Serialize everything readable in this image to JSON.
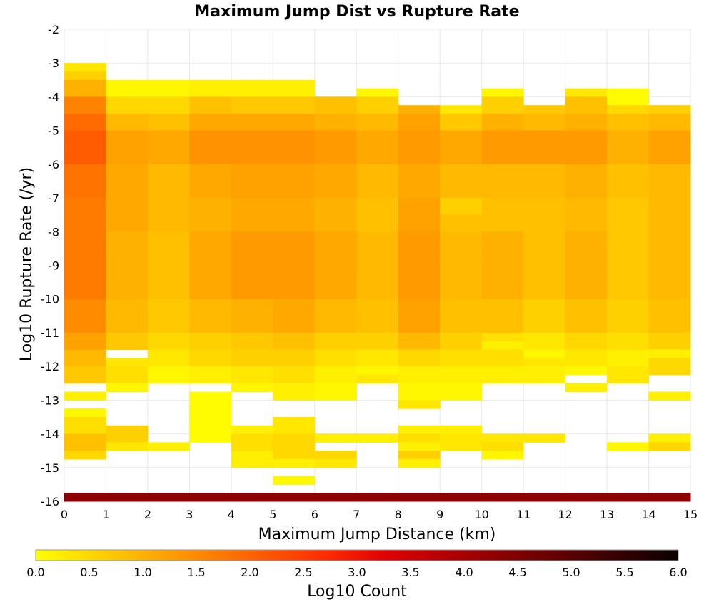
{
  "chart_data": {
    "type": "heatmap",
    "title": "Maximum Jump Dist vs Rupture Rate",
    "xlabel": "Maximum Jump Distance (km)",
    "ylabel": "Log10 Rupture Rate (/yr)",
    "xlim": [
      0,
      15
    ],
    "ylim": [
      -16,
      -2
    ],
    "x_ticks": [
      "0",
      "1",
      "2",
      "3",
      "4",
      "5",
      "6",
      "7",
      "8",
      "9",
      "10",
      "11",
      "12",
      "13",
      "14",
      "15"
    ],
    "y_ticks": [
      "-2",
      "-3",
      "-4",
      "-5",
      "-6",
      "-7",
      "-8",
      "-9",
      "-10",
      "-11",
      "-12",
      "-13",
      "-14",
      "-15",
      "-16"
    ],
    "grid": true,
    "x_bins": 15,
    "y_bin_width": 0.25,
    "colorbar": {
      "label": "Log10 Count",
      "range": [
        0,
        6
      ],
      "ticks": [
        "0.0",
        "0.5",
        "1.0",
        "1.5",
        "2.0",
        "2.5",
        "3.0",
        "3.5",
        "4.0",
        "4.5",
        "5.0",
        "5.5",
        "6.0"
      ],
      "stops": [
        "#ffff00",
        "#ffd400",
        "#ffaa00",
        "#ff8000",
        "#ff5500",
        "#ff2a00",
        "#e00000",
        "#b50000",
        "#8a0000",
        "#600000",
        "#350000",
        "#0a0000"
      ]
    },
    "columns": [
      {
        "x": 0.5,
        "ranges": [
          [
            -3.25,
            -3.0,
            0.3
          ],
          [
            -3.5,
            -3.25,
            0.6
          ],
          [
            -4.0,
            -3.5,
            1.0
          ],
          [
            -4.5,
            -4.0,
            1.6
          ],
          [
            -5.0,
            -4.5,
            1.9
          ],
          [
            -6.0,
            -5.0,
            2.1
          ],
          [
            -7.0,
            -6.0,
            1.8
          ],
          [
            -8.0,
            -7.0,
            1.7
          ],
          [
            -10.0,
            -8.0,
            1.7
          ],
          [
            -11.0,
            -10.0,
            1.5
          ],
          [
            -11.5,
            -11.0,
            1.2
          ],
          [
            -12.0,
            -11.5,
            0.9
          ],
          [
            -12.5,
            -12.0,
            0.7
          ],
          [
            -13.0,
            -12.75,
            0.2
          ],
          [
            -13.5,
            -13.25,
            0.1
          ],
          [
            -14.0,
            -13.5,
            0.4
          ],
          [
            -14.5,
            -14.0,
            0.8
          ],
          [
            -14.75,
            -14.5,
            0.5
          ],
          [
            -16.0,
            -15.75,
            4.3
          ]
        ]
      },
      {
        "x": 1.5,
        "ranges": [
          [
            -4.0,
            -3.5,
            0.1
          ],
          [
            -4.5,
            -4.0,
            0.5
          ],
          [
            -5.0,
            -4.5,
            0.9
          ],
          [
            -6.0,
            -5.0,
            1.2
          ],
          [
            -7.0,
            -6.0,
            1.1
          ],
          [
            -8.0,
            -7.0,
            1.1
          ],
          [
            -10.0,
            -8.0,
            1.0
          ],
          [
            -11.0,
            -10.0,
            0.9
          ],
          [
            -11.5,
            -11.0,
            0.7
          ],
          [
            -12.0,
            -11.75,
            0.3
          ],
          [
            -12.5,
            -12.0,
            0.4
          ],
          [
            -12.75,
            -12.5,
            0.1
          ],
          [
            -14.25,
            -13.75,
            0.6
          ],
          [
            -14.5,
            -14.25,
            0.3
          ],
          [
            -16.0,
            -15.75,
            4.3
          ]
        ]
      },
      {
        "x": 2.5,
        "ranges": [
          [
            -4.0,
            -3.5,
            0.1
          ],
          [
            -4.5,
            -4.0,
            0.5
          ],
          [
            -5.0,
            -4.5,
            0.8
          ],
          [
            -6.0,
            -5.0,
            1.1
          ],
          [
            -7.0,
            -6.0,
            0.9
          ],
          [
            -8.0,
            -7.0,
            0.9
          ],
          [
            -10.0,
            -8.0,
            0.8
          ],
          [
            -11.0,
            -10.0,
            0.7
          ],
          [
            -11.5,
            -11.0,
            0.5
          ],
          [
            -12.0,
            -11.5,
            0.3
          ],
          [
            -12.5,
            -12.0,
            0.1
          ],
          [
            -14.5,
            -14.25,
            0.2
          ],
          [
            -16.0,
            -15.75,
            4.3
          ]
        ]
      },
      {
        "x": 3.5,
        "ranges": [
          [
            -4.0,
            -3.5,
            0.2
          ],
          [
            -4.5,
            -4.0,
            0.8
          ],
          [
            -5.0,
            -4.5,
            1.1
          ],
          [
            -6.0,
            -5.0,
            1.4
          ],
          [
            -7.0,
            -6.0,
            1.1
          ],
          [
            -8.0,
            -7.0,
            1.0
          ],
          [
            -10.0,
            -8.0,
            1.1
          ],
          [
            -11.0,
            -10.0,
            0.9
          ],
          [
            -11.5,
            -11.0,
            0.6
          ],
          [
            -12.0,
            -11.5,
            0.5
          ],
          [
            -12.5,
            -12.0,
            0.2
          ],
          [
            -14.25,
            -12.75,
            0.05
          ],
          [
            -16.0,
            -15.75,
            4.3
          ]
        ]
      },
      {
        "x": 4.5,
        "ranges": [
          [
            -4.0,
            -3.5,
            0.2
          ],
          [
            -4.5,
            -4.0,
            0.7
          ],
          [
            -5.0,
            -4.5,
            1.1
          ],
          [
            -6.0,
            -5.0,
            1.4
          ],
          [
            -7.0,
            -6.0,
            1.2
          ],
          [
            -8.0,
            -7.0,
            1.1
          ],
          [
            -10.0,
            -8.0,
            1.3
          ],
          [
            -11.0,
            -10.0,
            1.0
          ],
          [
            -11.5,
            -11.0,
            0.7
          ],
          [
            -12.0,
            -11.5,
            0.6
          ],
          [
            -12.5,
            -12.0,
            0.3
          ],
          [
            -12.75,
            -12.5,
            0.1
          ],
          [
            -14.0,
            -13.75,
            0.2
          ],
          [
            -14.5,
            -14.0,
            0.4
          ],
          [
            -15.0,
            -14.5,
            0.2
          ],
          [
            -16.0,
            -15.75,
            4.3
          ]
        ]
      },
      {
        "x": 5.5,
        "ranges": [
          [
            -4.0,
            -3.5,
            0.2
          ],
          [
            -4.5,
            -4.0,
            0.7
          ],
          [
            -5.0,
            -4.5,
            1.1
          ],
          [
            -6.0,
            -5.0,
            1.4
          ],
          [
            -7.0,
            -6.0,
            1.2
          ],
          [
            -8.0,
            -7.0,
            1.1
          ],
          [
            -10.0,
            -8.0,
            1.3
          ],
          [
            -11.0,
            -10.0,
            1.1
          ],
          [
            -11.5,
            -11.0,
            0.8
          ],
          [
            -12.0,
            -11.5,
            0.6
          ],
          [
            -12.5,
            -12.0,
            0.4
          ],
          [
            -13.0,
            -12.5,
            0.2
          ],
          [
            -14.0,
            -13.5,
            0.3
          ],
          [
            -14.75,
            -14.0,
            0.5
          ],
          [
            -15.0,
            -14.75,
            0.2
          ],
          [
            -15.5,
            -15.25,
            0.1
          ],
          [
            -16.0,
            -15.75,
            4.3
          ]
        ]
      },
      {
        "x": 6.5,
        "ranges": [
          [
            -4.5,
            -4.0,
            0.8
          ],
          [
            -5.0,
            -4.5,
            1.0
          ],
          [
            -6.0,
            -5.0,
            1.3
          ],
          [
            -7.0,
            -6.0,
            1.1
          ],
          [
            -8.0,
            -7.0,
            1.0
          ],
          [
            -10.0,
            -8.0,
            1.1
          ],
          [
            -11.0,
            -10.0,
            0.9
          ],
          [
            -11.5,
            -11.0,
            0.6
          ],
          [
            -12.0,
            -11.5,
            0.4
          ],
          [
            -12.5,
            -12.0,
            0.2
          ],
          [
            -13.0,
            -12.5,
            0.1
          ],
          [
            -14.25,
            -14.0,
            0.2
          ],
          [
            -14.75,
            -14.5,
            0.5
          ],
          [
            -15.0,
            -14.75,
            0.3
          ],
          [
            -16.0,
            -15.75,
            4.3
          ]
        ]
      },
      {
        "x": 7.5,
        "ranges": [
          [
            -4.0,
            -3.75,
            0.1
          ],
          [
            -4.5,
            -4.0,
            0.6
          ],
          [
            -5.0,
            -4.5,
            0.9
          ],
          [
            -6.0,
            -5.0,
            1.1
          ],
          [
            -7.0,
            -6.0,
            0.9
          ],
          [
            -8.0,
            -7.0,
            0.8
          ],
          [
            -10.0,
            -8.0,
            0.9
          ],
          [
            -11.0,
            -10.0,
            0.8
          ],
          [
            -11.5,
            -11.0,
            0.6
          ],
          [
            -12.0,
            -11.5,
            0.3
          ],
          [
            -12.25,
            -12.0,
            0.1
          ],
          [
            -12.5,
            -12.25,
            0.3
          ],
          [
            -14.25,
            -14.0,
            0.2
          ],
          [
            -16.0,
            -15.75,
            4.3
          ]
        ]
      },
      {
        "x": 8.5,
        "ranges": [
          [
            -4.5,
            -4.25,
            1.0
          ],
          [
            -5.0,
            -4.5,
            1.2
          ],
          [
            -6.0,
            -5.0,
            1.3
          ],
          [
            -7.0,
            -6.0,
            1.1
          ],
          [
            -8.0,
            -7.0,
            1.2
          ],
          [
            -10.0,
            -8.0,
            1.3
          ],
          [
            -11.0,
            -10.0,
            1.2
          ],
          [
            -11.5,
            -11.0,
            0.9
          ],
          [
            -12.0,
            -11.5,
            0.5
          ],
          [
            -12.5,
            -12.0,
            0.2
          ],
          [
            -13.0,
            -12.5,
            0.1
          ],
          [
            -13.25,
            -13.0,
            0.3
          ],
          [
            -14.0,
            -13.75,
            0.2
          ],
          [
            -14.25,
            -14.0,
            0.4
          ],
          [
            -14.5,
            -14.25,
            0.2
          ],
          [
            -14.75,
            -14.5,
            0.6
          ],
          [
            -15.0,
            -14.75,
            0.2
          ],
          [
            -16.0,
            -15.75,
            4.3
          ]
        ]
      },
      {
        "x": 9.5,
        "ranges": [
          [
            -4.5,
            -4.25,
            0.3
          ],
          [
            -5.0,
            -4.5,
            0.7
          ],
          [
            -6.0,
            -5.0,
            1.1
          ],
          [
            -7.0,
            -6.0,
            0.9
          ],
          [
            -7.5,
            -7.0,
            0.6
          ],
          [
            -8.0,
            -7.5,
            0.8
          ],
          [
            -10.0,
            -8.0,
            0.9
          ],
          [
            -11.0,
            -10.0,
            0.8
          ],
          [
            -11.5,
            -11.0,
            0.6
          ],
          [
            -12.0,
            -11.5,
            0.4
          ],
          [
            -12.5,
            -12.0,
            0.2
          ],
          [
            -13.0,
            -12.5,
            0.1
          ],
          [
            -14.0,
            -13.75,
            0.2
          ],
          [
            -14.5,
            -14.0,
            0.3
          ],
          [
            -16.0,
            -15.75,
            4.3
          ]
        ]
      },
      {
        "x": 10.5,
        "ranges": [
          [
            -4.0,
            -3.75,
            0.1
          ],
          [
            -4.5,
            -4.0,
            0.6
          ],
          [
            -5.0,
            -4.5,
            1.0
          ],
          [
            -6.0,
            -5.0,
            1.3
          ],
          [
            -7.0,
            -6.0,
            0.9
          ],
          [
            -8.0,
            -7.0,
            0.8
          ],
          [
            -10.0,
            -8.0,
            1.0
          ],
          [
            -11.0,
            -10.0,
            0.8
          ],
          [
            -11.25,
            -11.0,
            0.4
          ],
          [
            -11.5,
            -11.25,
            0.2
          ],
          [
            -12.0,
            -11.5,
            0.4
          ],
          [
            -12.5,
            -12.0,
            0.2
          ],
          [
            -14.25,
            -14.0,
            0.3
          ],
          [
            -14.5,
            -14.25,
            0.4
          ],
          [
            -14.75,
            -14.5,
            0.1
          ],
          [
            -16.0,
            -15.75,
            4.3
          ]
        ]
      },
      {
        "x": 11.5,
        "ranges": [
          [
            -4.5,
            -4.25,
            0.7
          ],
          [
            -5.0,
            -4.5,
            0.9
          ],
          [
            -6.0,
            -5.0,
            1.3
          ],
          [
            -7.0,
            -6.0,
            0.9
          ],
          [
            -8.0,
            -7.0,
            0.8
          ],
          [
            -10.0,
            -8.0,
            0.8
          ],
          [
            -11.0,
            -10.0,
            0.6
          ],
          [
            -11.5,
            -11.0,
            0.3
          ],
          [
            -11.75,
            -11.5,
            0.1
          ],
          [
            -12.0,
            -11.75,
            0.3
          ],
          [
            -12.5,
            -12.0,
            0.2
          ],
          [
            -14.25,
            -14.0,
            0.3
          ],
          [
            -16.0,
            -15.75,
            4.3
          ]
        ]
      },
      {
        "x": 12.5,
        "ranges": [
          [
            -4.0,
            -3.75,
            0.3
          ],
          [
            -4.5,
            -4.0,
            0.8
          ],
          [
            -5.0,
            -4.5,
            1.0
          ],
          [
            -6.0,
            -5.0,
            1.3
          ],
          [
            -7.0,
            -6.0,
            1.0
          ],
          [
            -8.0,
            -7.0,
            0.9
          ],
          [
            -10.0,
            -8.0,
            1.0
          ],
          [
            -11.0,
            -10.0,
            0.8
          ],
          [
            -11.5,
            -11.0,
            0.5
          ],
          [
            -12.0,
            -11.5,
            0.3
          ],
          [
            -12.25,
            -12.0,
            0.1
          ],
          [
            -12.75,
            -12.5,
            0.2
          ],
          [
            -16.0,
            -15.75,
            4.3
          ]
        ]
      },
      {
        "x": 13.5,
        "ranges": [
          [
            -4.25,
            -3.75,
            0.05
          ],
          [
            -4.5,
            -4.25,
            0.5
          ],
          [
            -5.0,
            -4.5,
            0.8
          ],
          [
            -6.0,
            -5.0,
            1.0
          ],
          [
            -7.0,
            -6.0,
            0.8
          ],
          [
            -8.0,
            -7.0,
            0.7
          ],
          [
            -10.0,
            -8.0,
            0.7
          ],
          [
            -11.0,
            -10.0,
            0.6
          ],
          [
            -11.5,
            -11.0,
            0.4
          ],
          [
            -12.0,
            -11.5,
            0.2
          ],
          [
            -12.5,
            -12.0,
            0.3
          ],
          [
            -14.5,
            -14.25,
            0.1
          ],
          [
            -16.0,
            -15.75,
            4.3
          ]
        ]
      },
      {
        "x": 14.5,
        "ranges": [
          [
            -4.5,
            -4.25,
            0.6
          ],
          [
            -5.0,
            -4.5,
            0.9
          ],
          [
            -6.0,
            -5.0,
            1.2
          ],
          [
            -7.0,
            -6.0,
            0.9
          ],
          [
            -8.0,
            -7.0,
            0.9
          ],
          [
            -10.0,
            -8.0,
            0.9
          ],
          [
            -11.0,
            -10.0,
            0.8
          ],
          [
            -11.5,
            -11.0,
            0.6
          ],
          [
            -11.75,
            -11.5,
            0.2
          ],
          [
            -12.25,
            -11.75,
            0.5
          ],
          [
            -13.0,
            -12.75,
            0.2
          ],
          [
            -14.25,
            -14.0,
            0.2
          ],
          [
            -14.5,
            -14.25,
            0.5
          ],
          [
            -16.0,
            -15.75,
            4.3
          ]
        ]
      }
    ]
  }
}
